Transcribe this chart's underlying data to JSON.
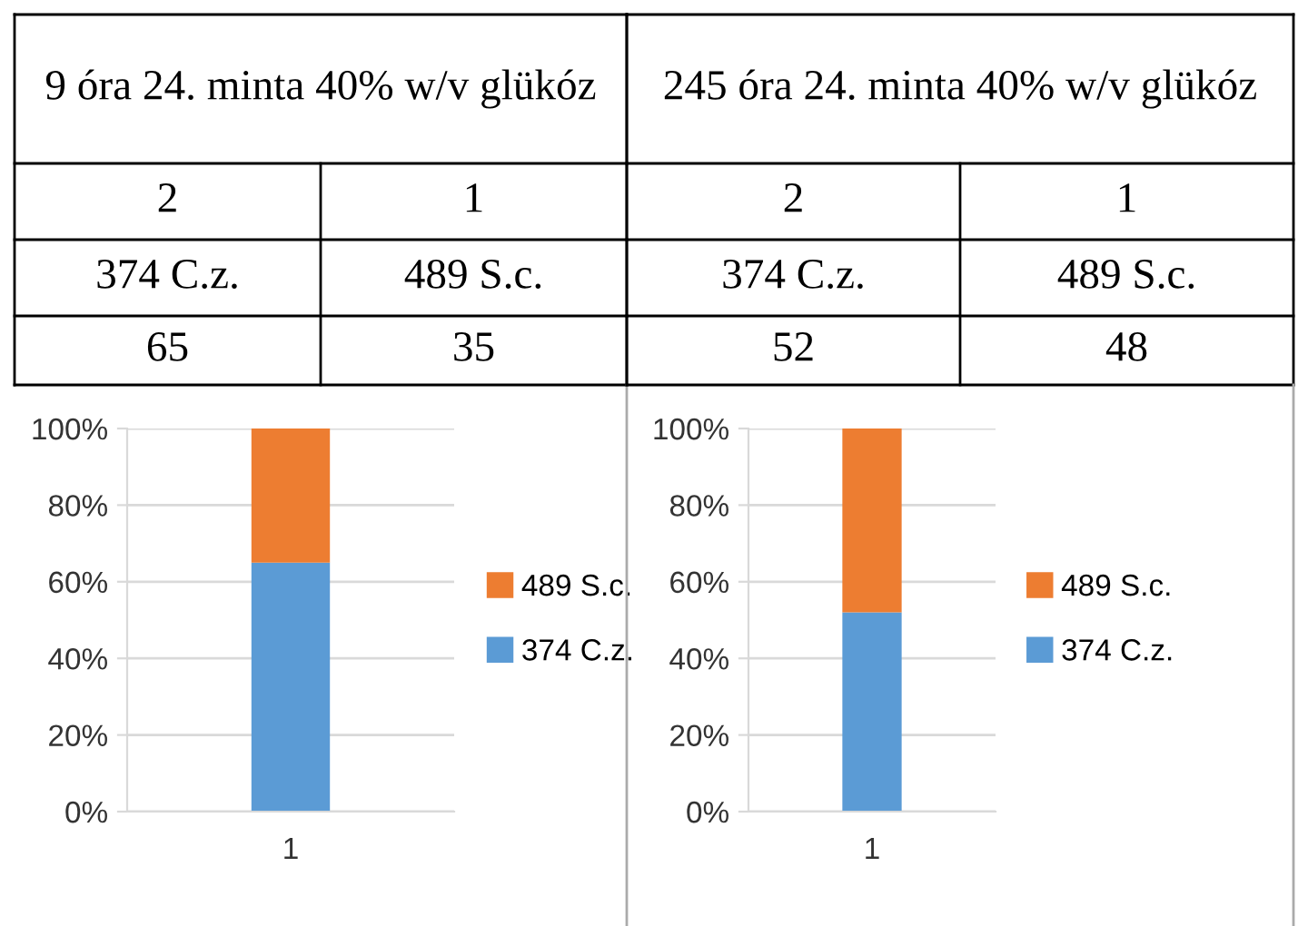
{
  "chart_data": [
    {
      "type": "bar",
      "stacked": true,
      "title": "9 óra 24. minta 40% w/v glükóz",
      "annotations": [
        "2",
        "1",
        "65",
        "35"
      ],
      "categories": [
        "1"
      ],
      "series": [
        {
          "name": "374 C.z.",
          "color": "#5b9bd5",
          "values": [
            65
          ]
        },
        {
          "name": "489 S.c.",
          "color": "#ed7d31",
          "values": [
            35
          ]
        }
      ],
      "ylim": [
        0,
        100
      ],
      "yticks": [
        {
          "value": 0,
          "label": "0%"
        },
        {
          "value": 20,
          "label": "20%"
        },
        {
          "value": 40,
          "label": "40%"
        },
        {
          "value": 60,
          "label": "60%"
        },
        {
          "value": 80,
          "label": "80%"
        },
        {
          "value": 100,
          "label": "100%"
        }
      ],
      "grid": "y",
      "legend": "right"
    },
    {
      "type": "bar",
      "stacked": true,
      "title": "245 óra 24. minta 40% w/v glükóz",
      "annotations": [
        "2",
        "1",
        "52",
        "48"
      ],
      "categories": [
        "1"
      ],
      "series": [
        {
          "name": "374 C.z.",
          "color": "#5b9bd5",
          "values": [
            52
          ]
        },
        {
          "name": "489 S.c.",
          "color": "#ed7d31",
          "values": [
            48
          ]
        }
      ],
      "ylim": [
        0,
        100
      ],
      "yticks": [
        {
          "value": 0,
          "label": "0%"
        },
        {
          "value": 20,
          "label": "20%"
        },
        {
          "value": 40,
          "label": "40%"
        },
        {
          "value": 60,
          "label": "60%"
        },
        {
          "value": 80,
          "label": "80%"
        },
        {
          "value": 100,
          "label": "100%"
        }
      ],
      "grid": "y",
      "legend": "right"
    }
  ]
}
